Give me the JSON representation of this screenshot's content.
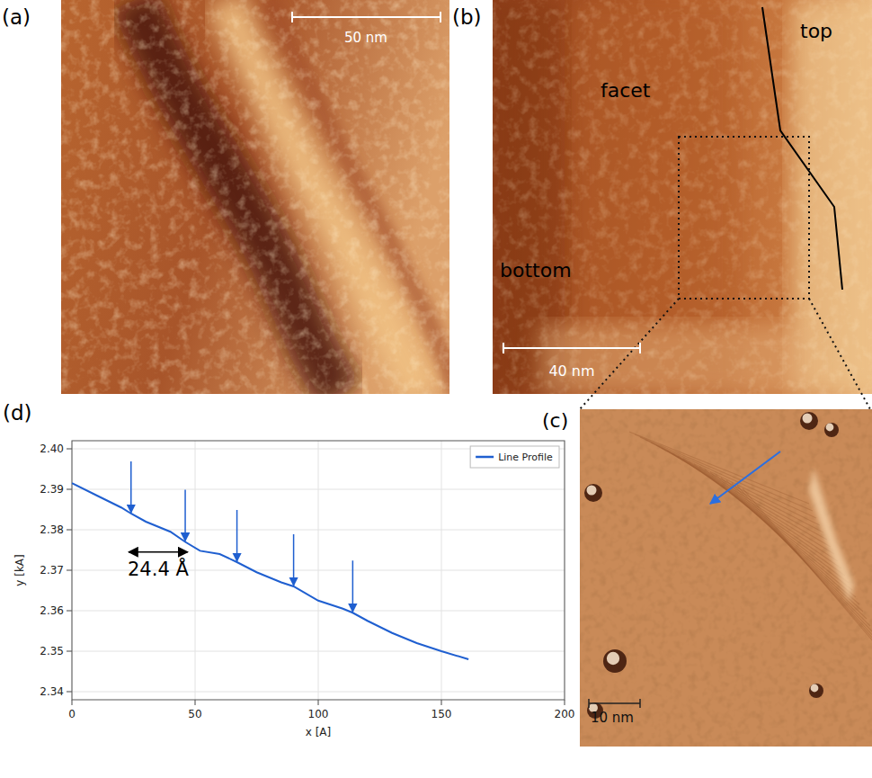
{
  "panels": [
    {
      "label": "(a)",
      "scale_bar": "50 nm"
    },
    {
      "label": "(b)",
      "scale_bar": "40 nm",
      "regions": [
        "facet",
        "top",
        "bottom"
      ]
    },
    {
      "label": "(c)",
      "scale_bar": "10 nm"
    },
    {
      "label": "(d)"
    }
  ],
  "chart_data": {
    "type": "line",
    "xlabel": "x [A]",
    "ylabel": "y [kA]",
    "x": [
      0,
      10,
      20,
      24,
      30,
      40,
      46,
      52,
      60,
      67,
      75,
      85,
      90,
      100,
      110,
      114,
      120,
      130,
      140,
      150,
      161
    ],
    "series": [
      {
        "name": "Line Profile",
        "color": "#1f5fd0",
        "values": [
          2.3915,
          2.3885,
          2.3855,
          2.384,
          2.382,
          2.3795,
          2.377,
          2.3748,
          2.374,
          2.372,
          2.3695,
          2.367,
          2.366,
          2.3625,
          2.3605,
          2.3595,
          2.3575,
          2.3545,
          2.352,
          2.35,
          2.348
        ]
      }
    ],
    "xlim": [
      0,
      200
    ],
    "ylim": [
      2.338,
      2.402
    ],
    "xticks": [
      0,
      50,
      100,
      150,
      200
    ],
    "yticks": [
      2.34,
      2.35,
      2.36,
      2.37,
      2.38,
      2.39,
      {
        "value": 2.4,
        "label": "2.40"
      }
    ],
    "grid": true,
    "legend": "upper right",
    "step_arrows": {
      "x": [
        24,
        46,
        67,
        90,
        114
      ],
      "y": [
        2.384,
        2.377,
        2.372,
        2.366,
        2.3595
      ]
    },
    "annotation": {
      "text": "24.4 Å",
      "x": [
        23,
        47
      ],
      "y": 2.3745
    }
  }
}
